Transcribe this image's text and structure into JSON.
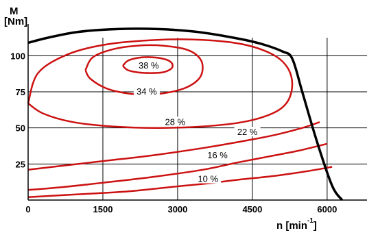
{
  "chart_data": {
    "type": "line",
    "title": "",
    "ylabel_line1": "M",
    "ylabel_line2": "[Nm]",
    "xlabel_main": "n [min",
    "xlabel_sup": "-1",
    "xlabel_end": "]",
    "xlim": [
      0,
      6800
    ],
    "ylim": [
      0,
      122
    ],
    "x_ticks": [
      0,
      1500,
      3000,
      4500,
      6000
    ],
    "x_tick_labels": [
      "0",
      "1500",
      "3000",
      "4500",
      "6000"
    ],
    "y_ticks": [
      25,
      50,
      75,
      100
    ],
    "y_tick_labels": [
      "25",
      "50",
      "75",
      "100"
    ],
    "grid": true,
    "colors": {
      "contour": "#cc1111",
      "limit": "#000000",
      "grid": "#000000"
    },
    "limit_curve": {
      "name": "",
      "x": [
        0,
        400,
        1000,
        1800,
        2600,
        3400,
        4200,
        4700,
        5100,
        5300,
        5500,
        5800,
        6100,
        6300
      ],
      "y": [
        109,
        112.5,
        116.5,
        118.5,
        118.5,
        116.5,
        112,
        108,
        103,
        98,
        75,
        40,
        10,
        0
      ]
    },
    "contours": [
      {
        "label": "38 %",
        "label_x": 2420,
        "label_y": 92,
        "x": [
          1900,
          2000,
          2200,
          2450,
          2700,
          2850,
          2900,
          2850,
          2700,
          2450,
          2200,
          2000,
          1900
        ],
        "y": [
          93,
          96.5,
          98.5,
          99,
          98,
          96,
          93,
          90.5,
          88.5,
          88,
          88.5,
          90,
          93
        ]
      },
      {
        "label": "34 %",
        "label_x": 2380,
        "label_y": 74,
        "x": [
          1150,
          1300,
          1700,
          2200,
          2700,
          3200,
          3450,
          3500,
          3400,
          3100,
          2600,
          2100,
          1600,
          1250,
          1150
        ],
        "y": [
          90,
          99,
          104.5,
          107,
          107,
          104,
          98,
          90,
          83,
          77,
          73.5,
          73.5,
          77,
          84,
          90
        ]
      },
      {
        "label": "28 %",
        "label_x": 2950,
        "label_y": 53,
        "x": [
          0,
          200,
          800,
          1600,
          2600,
          3500,
          4300,
          4900,
          5200,
          5300,
          5200,
          4900,
          4300,
          3500,
          2600,
          1700,
          900,
          300,
          0
        ],
        "y": [
          67,
          88,
          101,
          108,
          111,
          111,
          108,
          101,
          92,
          80,
          68,
          60,
          54,
          51,
          50,
          51,
          54,
          60,
          67
        ]
      },
      {
        "label": "22 %",
        "label_x": 4400,
        "label_y": 46,
        "x": [
          0,
          500,
          1500,
          2500,
          3500,
          4500,
          5000,
          5500,
          5850
        ],
        "y": [
          21,
          23,
          27,
          31,
          36,
          42,
          45.5,
          50,
          54
        ]
      },
      {
        "label": "16 %",
        "label_x": 3800,
        "label_y": 30,
        "x": [
          0,
          700,
          1500,
          2500,
          3500,
          4200,
          4800,
          5400,
          6000
        ],
        "y": [
          7,
          9,
          12,
          16,
          21,
          26,
          30,
          34,
          39
        ]
      },
      {
        "label": "10 %",
        "label_x": 3610,
        "label_y": 13.5,
        "x": [
          0,
          1000,
          2000,
          3000,
          3600,
          4200,
          5000,
          5600,
          6100
        ],
        "y": [
          2,
          4,
          6,
          9.5,
          11.5,
          14,
          17,
          20,
          23
        ]
      }
    ]
  }
}
